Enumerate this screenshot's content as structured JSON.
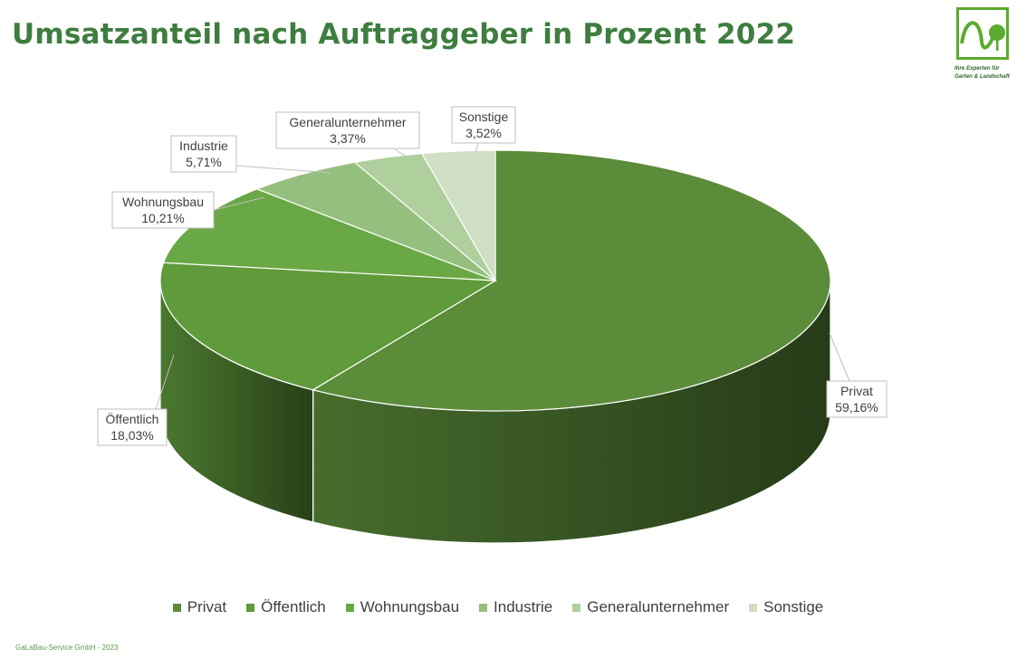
{
  "title": "Umsatzanteil nach Auftraggeber in Prozent 2022",
  "logo": {
    "line1": "Ihre Experten für",
    "line2": "Garten & Landschaft",
    "color": "#5aab2e"
  },
  "footer": "GaLaBau-Service GmbH  -  2023",
  "chart_data": {
    "type": "pie",
    "title": "Umsatzanteil nach Auftraggeber in Prozent 2022",
    "style": "3d",
    "legend_position": "bottom",
    "slices": [
      {
        "label": "Privat",
        "value": 59.16,
        "value_label": "59,16%",
        "color": "#5b8c3a"
      },
      {
        "label": "Öffentlich",
        "value": 18.03,
        "value_label": "18,03%",
        "color": "#5f9a3b"
      },
      {
        "label": "Wohnungsbau",
        "value": 10.21,
        "value_label": "10,21%",
        "color": "#6aa845"
      },
      {
        "label": "Industrie",
        "value": 5.71,
        "value_label": "5,71%",
        "color": "#95bf7e"
      },
      {
        "label": "Generalunternehmer",
        "value": 3.37,
        "value_label": "3,37%",
        "color": "#afcf9c"
      },
      {
        "label": "Sonstige",
        "value": 3.52,
        "value_label": "3,52%",
        "color": "#cfdfc4"
      }
    ]
  }
}
